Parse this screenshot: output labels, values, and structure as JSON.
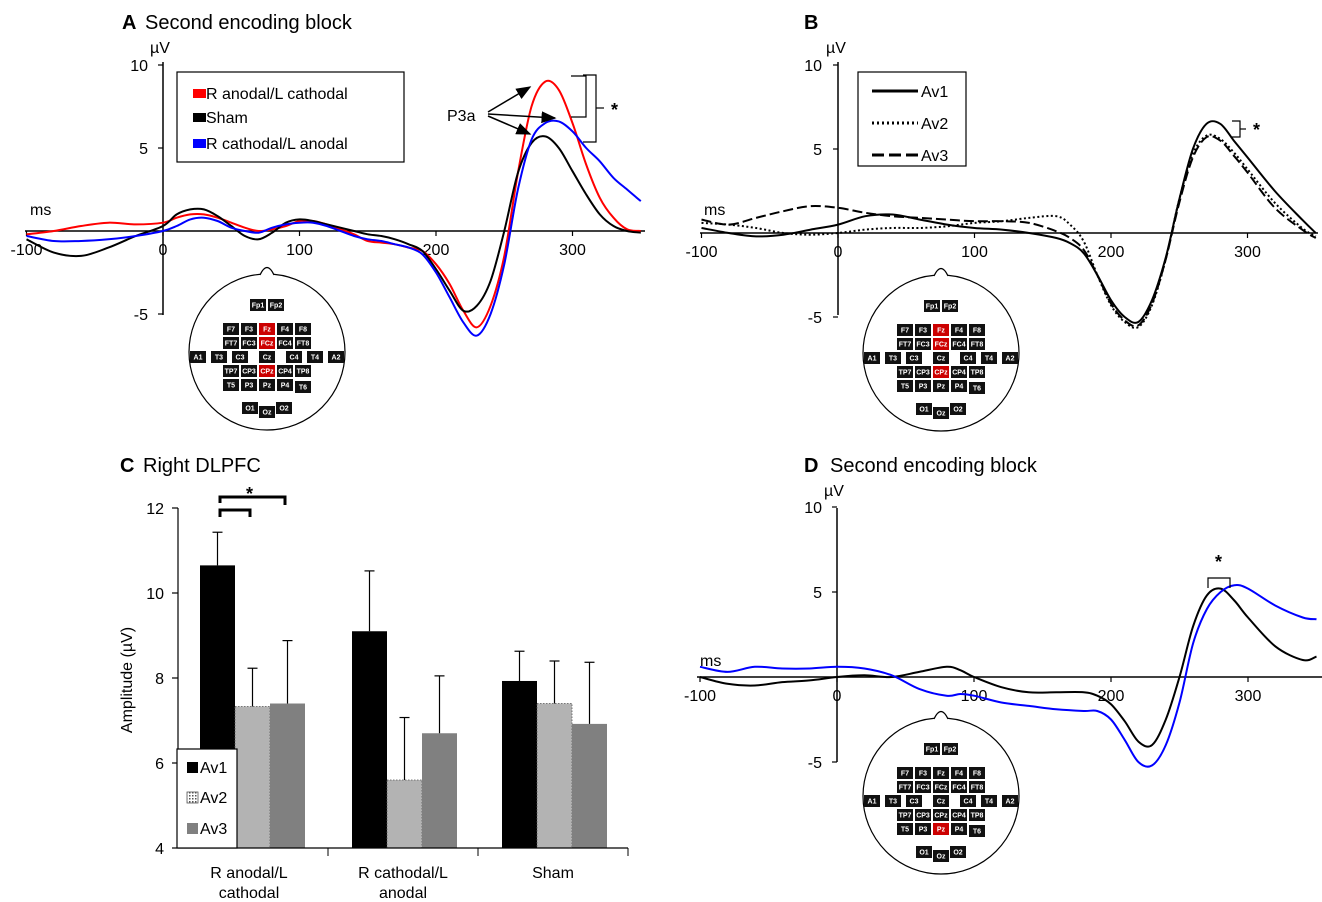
{
  "chart_data": [
    {
      "panel": "A",
      "type": "line",
      "title": "Second encoding block",
      "ylabel": "µV",
      "xlabel": "ms",
      "xlim": [
        -100,
        350
      ],
      "ylim": [
        -5,
        10
      ],
      "xticks": [
        "-100",
        "0",
        "100",
        "200",
        "300"
      ],
      "yticks": [
        "10",
        "5",
        "-5"
      ],
      "legend_position": "top-left",
      "series": [
        {
          "name": "R anodal/L cathodal",
          "color": "#ff0000",
          "x": [
            -100,
            -80,
            -60,
            -40,
            -20,
            0,
            10,
            20,
            30,
            40,
            50,
            60,
            70,
            80,
            90,
            100,
            110,
            120,
            130,
            140,
            150,
            160,
            170,
            180,
            190,
            200,
            210,
            220,
            230,
            240,
            250,
            260,
            270,
            280,
            290,
            300,
            310,
            320,
            330,
            340,
            350
          ],
          "y": [
            -0.2,
            0.0,
            0.3,
            0.5,
            0.4,
            0.5,
            0.8,
            1.0,
            1.0,
            0.8,
            0.5,
            0.2,
            0.0,
            0.1,
            0.3,
            0.6,
            0.6,
            0.4,
            0.1,
            -0.2,
            -0.6,
            -0.7,
            -0.8,
            -1.0,
            -1.2,
            -2.0,
            -3.2,
            -4.8,
            -5.8,
            -4.5,
            -1.5,
            3.5,
            7.5,
            9.0,
            8.5,
            6.5,
            4.0,
            2.0,
            0.8,
            0.1,
            0.0
          ]
        },
        {
          "name": "Sham",
          "color": "#000000",
          "x": [
            -100,
            -80,
            -60,
            -40,
            -20,
            0,
            10,
            20,
            30,
            40,
            50,
            60,
            70,
            80,
            90,
            100,
            110,
            120,
            130,
            140,
            150,
            160,
            170,
            180,
            190,
            200,
            210,
            220,
            230,
            240,
            250,
            260,
            270,
            280,
            290,
            300,
            310,
            320,
            330,
            340,
            350
          ],
          "y": [
            -0.5,
            -1.3,
            -1.5,
            -1.0,
            -0.3,
            0.3,
            1.0,
            1.3,
            1.3,
            0.9,
            0.3,
            -0.3,
            -0.5,
            -0.1,
            0.5,
            0.7,
            0.6,
            0.4,
            0.2,
            0.0,
            -0.2,
            -0.3,
            -0.5,
            -0.8,
            -1.2,
            -2.3,
            -3.6,
            -4.8,
            -4.5,
            -3.0,
            0.0,
            3.5,
            5.3,
            5.7,
            5.0,
            3.6,
            2.2,
            1.0,
            0.3,
            0.0,
            -0.1
          ]
        },
        {
          "name": "R cathodal/L anodal",
          "color": "#0000ff",
          "x": [
            -100,
            -80,
            -60,
            -40,
            -20,
            0,
            10,
            20,
            30,
            40,
            50,
            60,
            70,
            80,
            90,
            100,
            110,
            120,
            130,
            140,
            150,
            160,
            170,
            180,
            190,
            200,
            210,
            220,
            230,
            240,
            250,
            260,
            270,
            280,
            290,
            300,
            310,
            320,
            330,
            340,
            350
          ],
          "y": [
            -0.3,
            -0.6,
            -0.6,
            -0.5,
            -0.3,
            0.0,
            0.3,
            0.7,
            0.8,
            0.6,
            0.2,
            0.0,
            -0.1,
            0.2,
            0.4,
            0.5,
            0.5,
            0.3,
            0.0,
            -0.3,
            -0.5,
            -0.6,
            -0.8,
            -1.0,
            -1.4,
            -2.5,
            -4.0,
            -5.5,
            -6.3,
            -5.0,
            -2.0,
            2.5,
            5.5,
            6.5,
            6.6,
            6.0,
            5.0,
            4.2,
            3.2,
            2.5,
            1.8
          ]
        }
      ],
      "annotations": [
        "P3a",
        "*"
      ],
      "electrodes_highlighted": [
        "Fz",
        "FCz",
        "CPz"
      ]
    },
    {
      "panel": "B",
      "type": "line",
      "title": "",
      "ylabel": "µV",
      "xlabel": "ms",
      "xlim": [
        -100,
        350
      ],
      "ylim": [
        -5,
        10
      ],
      "xticks": [
        "-100",
        "0",
        "100",
        "200",
        "300"
      ],
      "yticks": [
        "10",
        "5",
        "-5"
      ],
      "legend_position": "top-left",
      "series": [
        {
          "name": "Av1",
          "color": "#000000",
          "dash": "solid",
          "x": [
            -100,
            -80,
            -60,
            -40,
            -20,
            0,
            20,
            40,
            60,
            80,
            100,
            120,
            140,
            160,
            170,
            180,
            190,
            200,
            210,
            220,
            230,
            240,
            250,
            260,
            270,
            280,
            290,
            300,
            320,
            340,
            350
          ],
          "y": [
            0.3,
            0.0,
            -0.2,
            -0.1,
            0.2,
            0.5,
            1.0,
            1.1,
            0.8,
            0.5,
            0.3,
            0.2,
            0.0,
            -0.3,
            -0.6,
            -1.2,
            -2.5,
            -4.0,
            -5.0,
            -5.3,
            -4.0,
            -1.5,
            2.0,
            5.0,
            6.5,
            6.5,
            5.5,
            4.5,
            2.5,
            0.8,
            0.0
          ]
        },
        {
          "name": "Av2",
          "color": "#000000",
          "dash": "dotted",
          "x": [
            -100,
            -80,
            -60,
            -40,
            -20,
            0,
            20,
            40,
            60,
            80,
            100,
            120,
            140,
            160,
            170,
            180,
            190,
            200,
            210,
            220,
            230,
            240,
            250,
            260,
            270,
            280,
            290,
            300,
            320,
            340,
            350
          ],
          "y": [
            0.6,
            0.5,
            0.3,
            0.0,
            -0.1,
            0.0,
            0.2,
            0.3,
            0.3,
            0.4,
            0.6,
            0.7,
            0.9,
            1.0,
            0.5,
            -0.5,
            -2.5,
            -4.3,
            -5.3,
            -5.6,
            -4.3,
            -1.6,
            2.0,
            4.7,
            5.8,
            5.6,
            4.8,
            3.8,
            1.8,
            0.3,
            -0.2
          ]
        },
        {
          "name": "Av3",
          "color": "#000000",
          "dash": "dashed",
          "x": [
            -100,
            -80,
            -60,
            -40,
            -20,
            0,
            20,
            40,
            60,
            80,
            100,
            120,
            140,
            160,
            170,
            180,
            190,
            200,
            210,
            220,
            230,
            240,
            250,
            260,
            270,
            280,
            290,
            300,
            320,
            340,
            350
          ],
          "y": [
            0.8,
            0.5,
            0.9,
            1.3,
            1.6,
            1.5,
            1.2,
            1.0,
            0.9,
            0.8,
            0.7,
            0.7,
            0.6,
            0.1,
            -0.3,
            -1.0,
            -2.5,
            -4.2,
            -5.2,
            -5.5,
            -4.2,
            -1.6,
            1.8,
            4.5,
            5.7,
            5.5,
            4.6,
            3.6,
            1.5,
            0.2,
            -0.3
          ]
        }
      ],
      "annotations": [
        "*"
      ],
      "electrodes_highlighted": [
        "Fz",
        "FCz",
        "CPz"
      ]
    },
    {
      "panel": "C",
      "type": "bar",
      "title": "Right DLPFC",
      "ylabel": "Amplitude (µV)",
      "xlabel": "",
      "ylim": [
        4,
        12
      ],
      "yticks": [
        "4",
        "6",
        "8",
        "10",
        "12"
      ],
      "categories": [
        "R anodal/L cathodal",
        "R cathodal/L anodal",
        "Sham"
      ],
      "legend_position": "bottom-left",
      "series": [
        {
          "name": "Av1",
          "color": "#000000",
          "values": [
            10.65,
            9.1,
            7.93
          ],
          "errors": [
            0.78,
            1.42,
            0.7
          ]
        },
        {
          "name": "Av2",
          "color": "#aaaaaa",
          "values": [
            7.33,
            5.6,
            7.4
          ],
          "errors": [
            0.9,
            1.47,
            1.0
          ]
        },
        {
          "name": "Av3",
          "color": "#808080",
          "values": [
            7.4,
            6.7,
            6.92
          ],
          "errors": [
            1.48,
            1.35,
            1.45
          ]
        }
      ],
      "annotations": [
        "*"
      ]
    },
    {
      "panel": "D",
      "type": "line",
      "title": "Second encoding block",
      "ylabel": "µV",
      "xlabel": "ms",
      "xlim": [
        -100,
        350
      ],
      "ylim": [
        -5,
        10
      ],
      "xticks": [
        "-100",
        "0",
        "100",
        "200",
        "300"
      ],
      "yticks": [
        "10",
        "5",
        "-5"
      ],
      "series": [
        {
          "color": "#000000",
          "x": [
            -100,
            -80,
            -60,
            -40,
            -20,
            0,
            20,
            40,
            60,
            80,
            90,
            100,
            120,
            140,
            160,
            180,
            190,
            200,
            210,
            220,
            230,
            240,
            250,
            260,
            270,
            280,
            290,
            300,
            320,
            340,
            350
          ],
          "y": [
            0.0,
            -0.4,
            -0.5,
            -0.3,
            -0.2,
            0.0,
            0.1,
            0.0,
            0.3,
            0.6,
            0.4,
            0.0,
            -0.6,
            -0.9,
            -0.9,
            -0.9,
            -1.1,
            -1.6,
            -2.6,
            -3.8,
            -4.0,
            -2.5,
            0.0,
            3.0,
            4.8,
            5.2,
            4.5,
            3.5,
            1.8,
            1.0,
            1.2
          ]
        },
        {
          "color": "#0000ff",
          "x": [
            -100,
            -80,
            -60,
            -40,
            -20,
            0,
            20,
            40,
            60,
            80,
            90,
            100,
            120,
            140,
            160,
            180,
            190,
            200,
            210,
            220,
            230,
            240,
            250,
            260,
            270,
            280,
            290,
            300,
            320,
            340,
            350
          ],
          "y": [
            0.6,
            0.3,
            0.6,
            0.5,
            0.5,
            0.6,
            0.5,
            0.1,
            -0.7,
            -1.1,
            -1.0,
            -1.1,
            -1.5,
            -1.7,
            -1.9,
            -2.0,
            -2.0,
            -2.5,
            -3.7,
            -5.0,
            -5.2,
            -4.0,
            -1.5,
            2.0,
            4.0,
            5.0,
            5.4,
            5.2,
            4.2,
            3.5,
            3.4
          ]
        }
      ],
      "annotations": [
        "*"
      ],
      "electrodes_highlighted": [
        "Pz"
      ]
    }
  ],
  "panels": {
    "a": {
      "letter": "A",
      "title": "Second encoding block",
      "yunit": "µV",
      "xunit": "ms",
      "xticks": [
        "-100",
        "0",
        "100",
        "200",
        "300"
      ],
      "yticks": [
        "10",
        "5",
        "-5"
      ],
      "legend": [
        "R anodal/L cathodal",
        "Sham",
        "R cathodal/L anodal"
      ],
      "p3a_label": "P3a",
      "star": "*"
    },
    "b": {
      "letter": "B",
      "yunit": "µV",
      "xunit": "ms",
      "xticks": [
        "-100",
        "0",
        "100",
        "200",
        "300"
      ],
      "yticks": [
        "10",
        "5",
        "-5"
      ],
      "legend": [
        "Av1",
        "Av2",
        "Av3"
      ],
      "star": "*"
    },
    "c": {
      "letter": "C",
      "title": "Right DLPFC",
      "ylabel": "Amplitude (µV)",
      "yticks": [
        "12",
        "10",
        "8",
        "6",
        "4"
      ],
      "cat1_line1": "R anodal/L",
      "cat1_line2": "cathodal",
      "cat2_line1": "R cathodal/L",
      "cat2_line2": "anodal",
      "cat3": "Sham",
      "legend": [
        "Av1",
        "Av2",
        "Av3"
      ],
      "star": "*"
    },
    "d": {
      "letter": "D",
      "title": "Second encoding block",
      "yunit": "µV",
      "xunit": "ms",
      "xticks": [
        "-100",
        "0",
        "100",
        "200",
        "300"
      ],
      "yticks": [
        "10",
        "5",
        "-5"
      ],
      "star": "*"
    }
  },
  "electrode_labels": [
    "Fp1",
    "Fp2",
    "F7",
    "F3",
    "Fz",
    "F4",
    "F8",
    "FT7",
    "FC3",
    "FCz",
    "FC4",
    "FT8",
    "A1",
    "T3",
    "C3",
    "Cz",
    "C4",
    "T4",
    "A2",
    "TP7",
    "CP3",
    "CPz",
    "CP4",
    "TP8",
    "T5",
    "P3",
    "Pz",
    "P4",
    "T6",
    "O1",
    "Oz",
    "O2"
  ],
  "colors": {
    "red": "#ff0000",
    "blue": "#0000ff",
    "black": "#000000",
    "highlight": "#cc0000",
    "electrode": "#111111"
  }
}
